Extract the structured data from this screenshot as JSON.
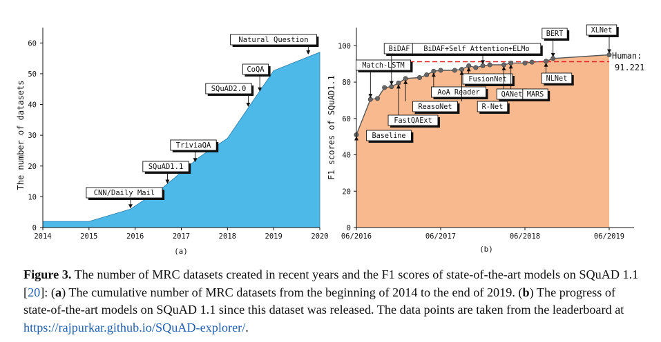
{
  "figure": {
    "panel_a_label": "(a)",
    "panel_b_label": "(b)"
  },
  "chart_data": [
    {
      "type": "area",
      "title": "",
      "xlabel": "",
      "ylabel": "The number of datasets",
      "xlim": [
        2014,
        2020
      ],
      "ylim": [
        0,
        65
      ],
      "xticks": [
        "2014",
        "2015",
        "2016",
        "2017",
        "2018",
        "2019",
        "2020"
      ],
      "yticks": [
        "0",
        "10",
        "20",
        "30",
        "40",
        "50",
        "60"
      ],
      "fill_color": "#4db9e8",
      "grid": false,
      "series": [
        {
          "x": [
            2014.0,
            2015.0,
            2015.9,
            2016.6,
            2017.4,
            2018.0,
            2018.5,
            2019.0,
            2020.0
          ],
          "y": [
            2,
            2,
            6,
            13,
            23,
            29,
            40,
            51,
            57
          ]
        }
      ],
      "annotations": [
        {
          "text": "CNN/Daily Mail",
          "x": 2015.9,
          "y": 6
        },
        {
          "text": "SQuAD1.1",
          "x": 2016.7,
          "y": 14
        },
        {
          "text": "TriviaQA",
          "x": 2017.3,
          "y": 21
        },
        {
          "text": "SQuAD2.0",
          "x": 2018.45,
          "y": 39
        },
        {
          "text": "CoQA",
          "x": 2018.7,
          "y": 44
        },
        {
          "text": "Natural Question",
          "x": 2019.75,
          "y": 56
        }
      ]
    },
    {
      "type": "area",
      "title": "",
      "xlabel": "",
      "ylabel": "F1 scores of SQuAD1.1",
      "xlim": [
        "2016-06",
        "2019-06"
      ],
      "ylim": [
        0,
        110
      ],
      "xticks": [
        "06/2016",
        "06/2017",
        "06/2018",
        "06/2019"
      ],
      "yticks": [
        "0",
        "20",
        "40",
        "60",
        "80",
        "100"
      ],
      "fill_color": "#f9b98f",
      "grid": false,
      "human_performance": {
        "label": "Human:",
        "value": "91.221",
        "y": 91.221,
        "color": "#e02020"
      },
      "series": [
        {
          "x": [
            "2016-06",
            "2016-08",
            "2016-09",
            "2016-10",
            "2016-11",
            "2016-12",
            "2017-01",
            "2017-03",
            "2017-04",
            "2017-05",
            "2017-06",
            "2017-08",
            "2017-09",
            "2017-10",
            "2017-11",
            "2017-12",
            "2018-01",
            "2018-03",
            "2018-04",
            "2018-06",
            "2018-07",
            "2018-09",
            "2018-10",
            "2019-06"
          ],
          "y": [
            51,
            70.5,
            71,
            77,
            77.5,
            79.5,
            82,
            82.5,
            84,
            86,
            86.5,
            86.5,
            87,
            89,
            88,
            89,
            89.5,
            89.5,
            90.5,
            90.5,
            91,
            91.5,
            93,
            95
          ]
        }
      ],
      "annotations": [
        {
          "text": "Baseline",
          "x": "2016-06",
          "y": 51
        },
        {
          "text": "Match-LSTM",
          "x": "2016-08",
          "y": 70.5
        },
        {
          "text": "BiDAF",
          "x": "2016-11",
          "y": 77.5
        },
        {
          "text": "FastQAExt",
          "x": "2016-12",
          "y": 79.5
        },
        {
          "text": "BiDAF+Self Attention+ELMo",
          "x": "2017-12",
          "y": 89
        },
        {
          "text": "ReasoNet",
          "x": "2017-01",
          "y": 82
        },
        {
          "text": "AoA Reader",
          "x": "2017-05",
          "y": 86
        },
        {
          "text": "FusionNet",
          "x": "2017-10",
          "y": 89
        },
        {
          "text": "R-Net",
          "x": "2017-09",
          "y": 87
        },
        {
          "text": "QANet",
          "x": "2018-03",
          "y": 89.5
        },
        {
          "text": "MARS",
          "x": "2018-04",
          "y": 90.5
        },
        {
          "text": "NLNet",
          "x": "2018-09",
          "y": 91.5
        },
        {
          "text": "BERT",
          "x": "2018-10",
          "y": 93
        },
        {
          "text": "XLNet",
          "x": "2019-06",
          "y": 95
        }
      ]
    }
  ],
  "caption": {
    "label": "Figure 3.",
    "text1": " The number of MRC datasets created in recent years and the F1 scores of state-of-the-art models on SQuAD 1.1 [",
    "ref": "20",
    "text2": "]: (",
    "a": "a",
    "text3": ") The cumulative number of MRC datasets from the beginning of 2014 to the end of 2019. (",
    "b": "b",
    "text4": ") The progress of state-of-the-art models on SQuAD 1.1 since this dataset was released. The data points are taken from the leaderboard at ",
    "link": "https://rajpurkar.github.io/SQuAD-explorer/",
    "text5": "."
  }
}
